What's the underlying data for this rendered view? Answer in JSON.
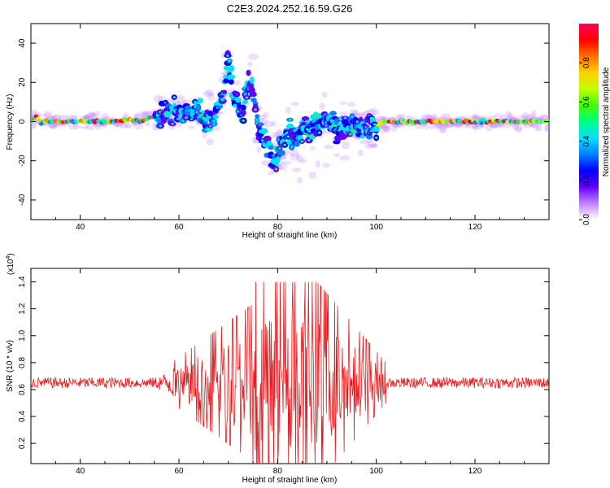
{
  "title": "C2E3.2024.252.16.59.G26",
  "chart_data": [
    {
      "type": "heatmap",
      "xlabel": "Height of straight line (km)",
      "ylabel": "Frequency (Hz)",
      "xlim": [
        30,
        135
      ],
      "ylim": [
        -50,
        50
      ],
      "xticks": [
        40,
        60,
        80,
        100,
        120
      ],
      "yticks": [
        -40,
        -20,
        0,
        20,
        40
      ],
      "colorbar": {
        "label": "Normalized spectral amplitude",
        "range": [
          0,
          1
        ],
        "ticks": [
          "0.0",
          "0.2",
          "0.4",
          "0.6",
          "0.8"
        ],
        "colors": [
          "#ffffff",
          "#c080ff",
          "#6000ff",
          "#0000ff",
          "#0080ff",
          "#00e0ff",
          "#00ff80",
          "#40ff00",
          "#c0ff00",
          "#ffd000",
          "#ff7000",
          "#ff0000",
          "#ff0060"
        ]
      },
      "ridge": {
        "x": [
          30,
          31,
          32,
          33,
          35,
          40,
          45,
          48,
          50,
          52,
          54,
          56,
          58,
          60,
          62,
          64,
          66,
          67,
          68,
          69,
          70,
          71,
          72,
          73,
          74,
          75,
          76,
          77,
          78,
          79,
          80,
          82,
          84,
          86,
          88,
          90,
          92,
          95,
          98,
          100,
          102,
          105,
          110,
          120,
          130,
          135
        ],
        "y": [
          0,
          3,
          -1,
          0,
          0,
          0,
          0,
          0,
          1,
          0,
          2,
          3,
          5,
          6,
          5,
          3,
          0,
          2,
          6,
          14,
          32,
          12,
          10,
          6,
          20,
          18,
          -2,
          -8,
          -12,
          -20,
          -16,
          -6,
          -8,
          -4,
          -2,
          0,
          -3,
          -2,
          -4,
          -2,
          0,
          0,
          0,
          0,
          0,
          0
        ]
      }
    },
    {
      "type": "line",
      "xlabel": "Height of straight line (km)",
      "ylabel": "SNR (10 * v/v)",
      "multiplier": "(x10",
      "multiplier_exp": "4",
      "multiplier_close": ")",
      "xlim": [
        30,
        135
      ],
      "ylim": [
        0.05,
        1.5
      ],
      "xticks": [
        40,
        60,
        80,
        100,
        120
      ],
      "yticks": [
        "0.2",
        "0.4",
        "0.6",
        "0.8",
        "1.0",
        "1.2",
        "1.4"
      ],
      "baseline": 0.65,
      "color": "#e8191c"
    }
  ]
}
